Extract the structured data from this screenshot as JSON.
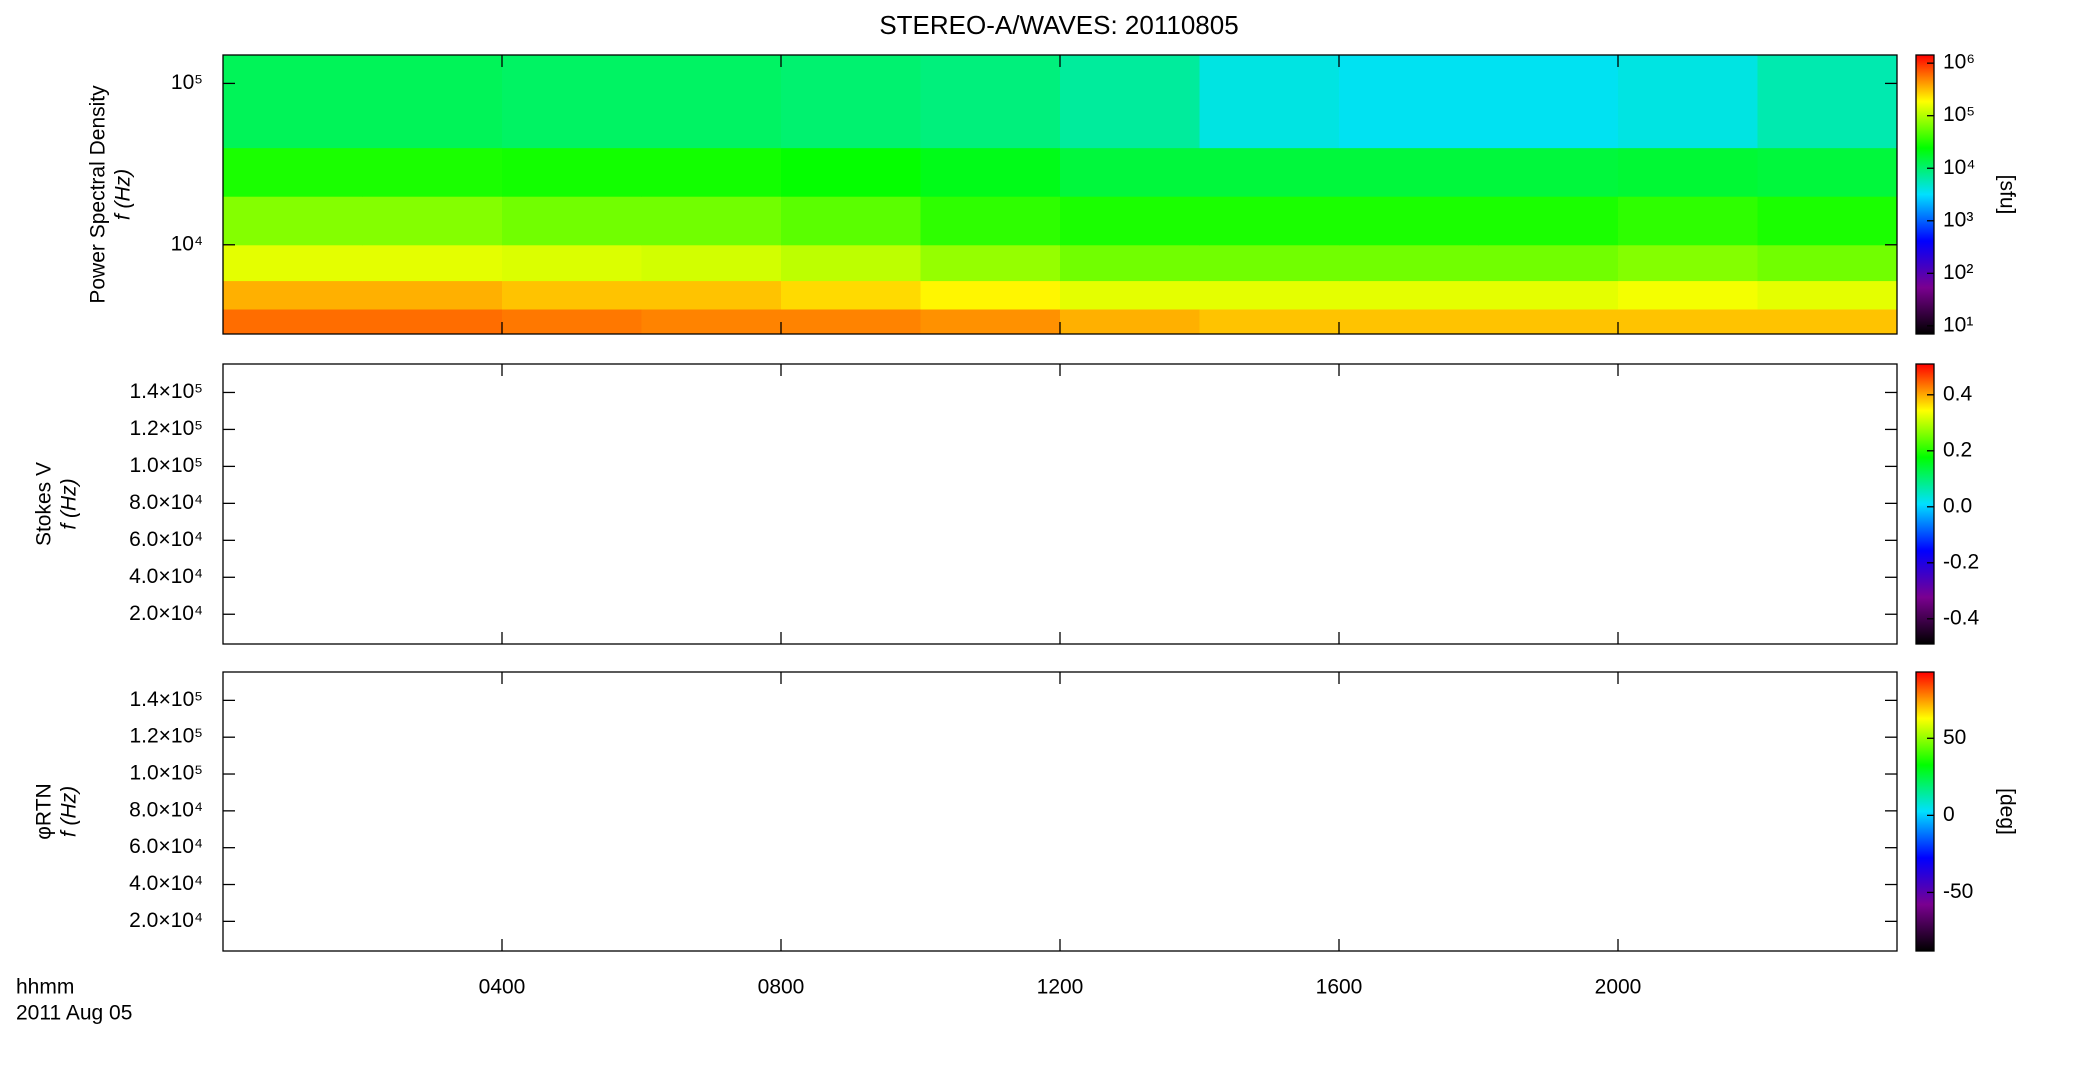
{
  "chart_data": [
    {
      "type": "heatmap",
      "title": "STEREO-A/WAVES: 20110805",
      "ylabel": [
        "Power Spectral Density",
        "f (Hz)"
      ],
      "xlim": [
        0,
        24
      ],
      "ylim": [
        2800,
        150000
      ],
      "ylog": true,
      "yticks": [
        {
          "value": 10000,
          "label": "10⁴"
        },
        {
          "value": 100000,
          "label": "10⁵"
        }
      ],
      "x_edges": [
        0,
        2,
        4,
        6,
        8,
        10,
        12,
        14,
        16,
        18,
        20,
        22,
        24
      ],
      "y_edges": [
        2800,
        4000,
        6000,
        10000,
        20000,
        40000,
        150000
      ],
      "values": [
        [
          600000,
          600000,
          550000,
          500000,
          500000,
          450000,
          350000,
          300000,
          300000,
          300000,
          300000,
          300000
        ],
        [
          350000,
          350000,
          300000,
          300000,
          250000,
          200000,
          150000,
          150000,
          150000,
          150000,
          170000,
          150000
        ],
        [
          150000,
          150000,
          140000,
          130000,
          110000,
          80000,
          60000,
          60000,
          60000,
          60000,
          70000,
          60000
        ],
        [
          70000,
          70000,
          60000,
          60000,
          50000,
          35000,
          30000,
          30000,
          30000,
          30000,
          35000,
          30000
        ],
        [
          30000,
          30000,
          28000,
          28000,
          25000,
          20000,
          15000,
          15000,
          15000,
          15000,
          16000,
          15000
        ],
        [
          12000,
          12000,
          11000,
          11000,
          10000,
          9000,
          7000,
          4000,
          3500,
          3500,
          4000,
          6000
        ]
      ],
      "zlim": [
        7,
        1430000
      ],
      "zlog": true,
      "zticks": [
        {
          "value": 10,
          "label": "10¹"
        },
        {
          "value": 100,
          "label": "10²"
        },
        {
          "value": 1000,
          "label": "10³"
        },
        {
          "value": 10000,
          "label": "10⁴"
        },
        {
          "value": 100000,
          "label": "10⁵"
        },
        {
          "value": 1000000,
          "label": "10⁶"
        }
      ],
      "zlabel": "[sfu]",
      "colormap": [
        "#000000",
        "#7a0090",
        "#0000ff",
        "#00e0ff",
        "#00ff00",
        "#ffff00",
        "#ff0000"
      ]
    },
    {
      "type": "heatmap",
      "ylabel": [
        "Stokes V",
        "f (Hz)"
      ],
      "xlim": [
        0,
        24
      ],
      "ylim": [
        3900,
        155400
      ],
      "ylog": false,
      "yticks": [
        {
          "value": 20000,
          "label": "2.0×10⁴"
        },
        {
          "value": 40000,
          "label": "4.0×10⁴"
        },
        {
          "value": 60000,
          "label": "6.0×10⁴"
        },
        {
          "value": 80000,
          "label": "8.0×10⁴"
        },
        {
          "value": 100000,
          "label": "1.0×10⁵"
        },
        {
          "value": 120000,
          "label": "1.2×10⁵"
        },
        {
          "value": 140000,
          "label": "1.4×10⁵"
        }
      ],
      "zlim": [
        -0.49,
        0.51
      ],
      "zlog": false,
      "zticks": [
        -0.4,
        -0.2,
        {
          "value": 0,
          "label": "0.0"
        },
        0.2,
        0.4
      ],
      "colormap": [
        "#000000",
        "#7a0090",
        "#0000ff",
        "#00e0ff",
        "#00ff00",
        "#ffff00",
        "#ff0000"
      ]
    },
    {
      "type": "heatmap",
      "ylabel": [
        "φRTN",
        "f (Hz)"
      ],
      "xlim": [
        0,
        24
      ],
      "ylim": [
        3900,
        155400
      ],
      "ylog": false,
      "yticks": [
        {
          "value": 20000,
          "label": "2.0×10⁴"
        },
        {
          "value": 40000,
          "label": "4.0×10⁴"
        },
        {
          "value": 60000,
          "label": "6.0×10⁴"
        },
        {
          "value": 80000,
          "label": "8.0×10⁴"
        },
        {
          "value": 100000,
          "label": "1.0×10⁵"
        },
        {
          "value": 120000,
          "label": "1.2×10⁵"
        },
        {
          "value": 140000,
          "label": "1.4×10⁵"
        }
      ],
      "zlim": [
        -88,
        93
      ],
      "zlog": false,
      "zticks": [
        -50,
        0,
        50
      ],
      "zlabel": "[deg]",
      "colormap": [
        "#000000",
        "#7a0090",
        "#0000ff",
        "#00e0ff",
        "#00ff00",
        "#ffff00",
        "#ff0000"
      ],
      "xticks": [
        {
          "value": 4,
          "label": "0400"
        },
        {
          "value": 8,
          "label": "0800"
        },
        {
          "value": 12,
          "label": "1200"
        },
        {
          "value": 16,
          "label": "1600"
        },
        {
          "value": 20,
          "label": "2000"
        }
      ],
      "xlabel": [
        "hhmm",
        "2011 Aug 05"
      ]
    }
  ]
}
